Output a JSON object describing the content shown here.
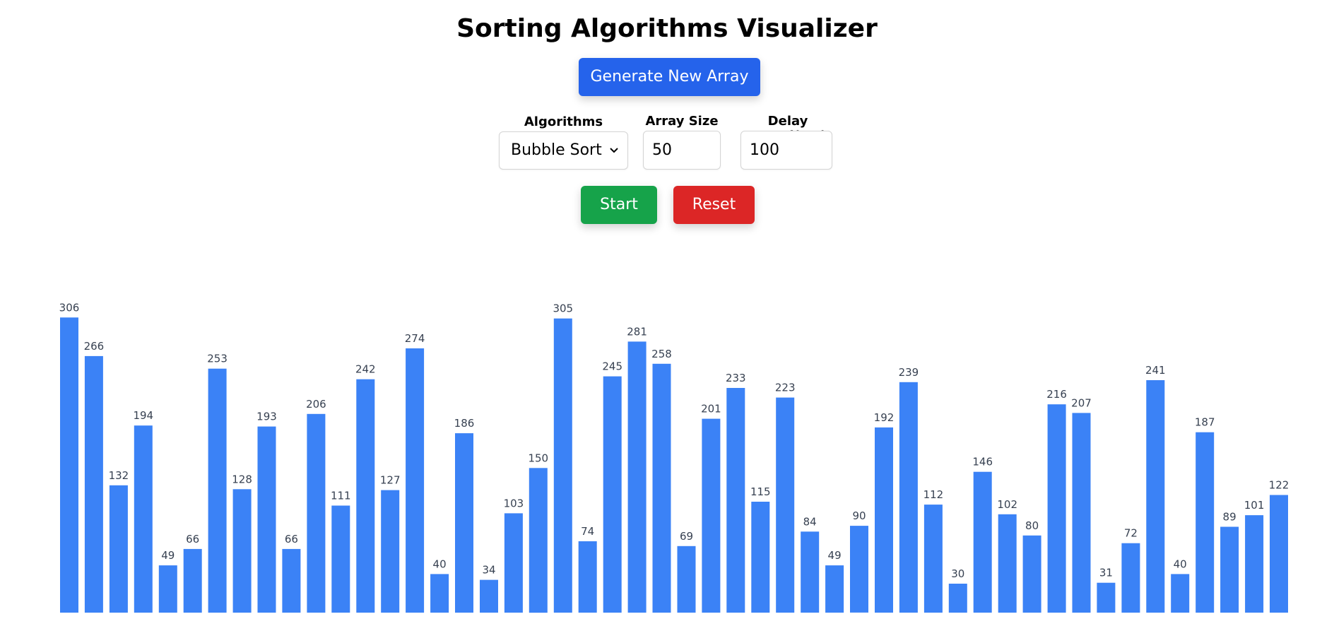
{
  "title": "Sorting Algorithms Visualizer",
  "buttons": {
    "generate": "Generate New Array",
    "start": "Start",
    "reset": "Reset"
  },
  "controls": {
    "algorithm_label": "Algorithms",
    "algorithm_value": "Bubble Sort",
    "array_size_label": "Array Size",
    "array_size_value": "50",
    "delay_label": "Delay Speed(ms)",
    "delay_value": "100"
  },
  "colors": {
    "bar": "#3b82f6",
    "generate_button": "#2563eb",
    "start_button": "#16a34a",
    "reset_button": "#dc2626"
  },
  "icons": {
    "algorithm_dropdown": "chevron-down-icon"
  },
  "chart_data": {
    "type": "bar",
    "values": [
      306,
      266,
      132,
      194,
      49,
      66,
      253,
      128,
      193,
      66,
      206,
      111,
      242,
      127,
      274,
      40,
      186,
      34,
      103,
      150,
      305,
      74,
      245,
      281,
      258,
      69,
      201,
      233,
      115,
      223,
      84,
      49,
      90,
      192,
      239,
      112,
      30,
      146,
      102,
      80,
      216,
      207,
      31,
      72,
      241,
      40,
      187,
      89,
      101,
      122
    ]
  }
}
